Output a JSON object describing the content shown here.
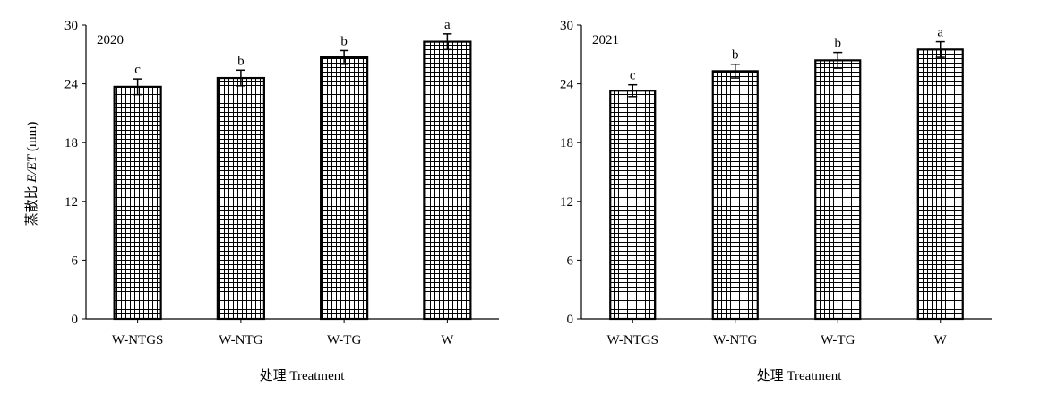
{
  "figure": {
    "ylabel_prefix": "蒸散比",
    "ylabel_italic": "E/ET",
    "ylabel_suffix": "(mm)",
    "colors": {
      "bar_fill": "#ffffff",
      "bar_hatch": "#000000",
      "axis": "#000000"
    }
  },
  "chart_data": [
    {
      "type": "bar",
      "title": "2020",
      "categories": [
        "W-NTGS",
        "W-NTG",
        "W-TG",
        "W"
      ],
      "values": [
        23.7,
        24.6,
        26.7,
        28.3
      ],
      "errors": [
        0.8,
        0.8,
        0.7,
        0.8
      ],
      "significance": [
        "c",
        "b",
        "b",
        "a"
      ],
      "xlabel": "处理 Treatment",
      "ylabel": "蒸散比 E/ET (mm)",
      "ylim": [
        0,
        30
      ],
      "yticks": [
        0,
        6,
        12,
        18,
        24,
        30
      ],
      "hatch": "grid",
      "grid": false
    },
    {
      "type": "bar",
      "title": "2021",
      "categories": [
        "W-NTGS",
        "W-NTG",
        "W-TG",
        "W"
      ],
      "values": [
        23.3,
        25.3,
        26.4,
        27.5
      ],
      "errors": [
        0.6,
        0.7,
        0.8,
        0.8
      ],
      "significance": [
        "c",
        "b",
        "b",
        "a"
      ],
      "xlabel": "处理 Treatment",
      "ylabel": "",
      "ylim": [
        0,
        30
      ],
      "yticks": [
        0,
        6,
        12,
        18,
        24,
        30
      ],
      "hatch": "grid",
      "grid": false
    }
  ]
}
